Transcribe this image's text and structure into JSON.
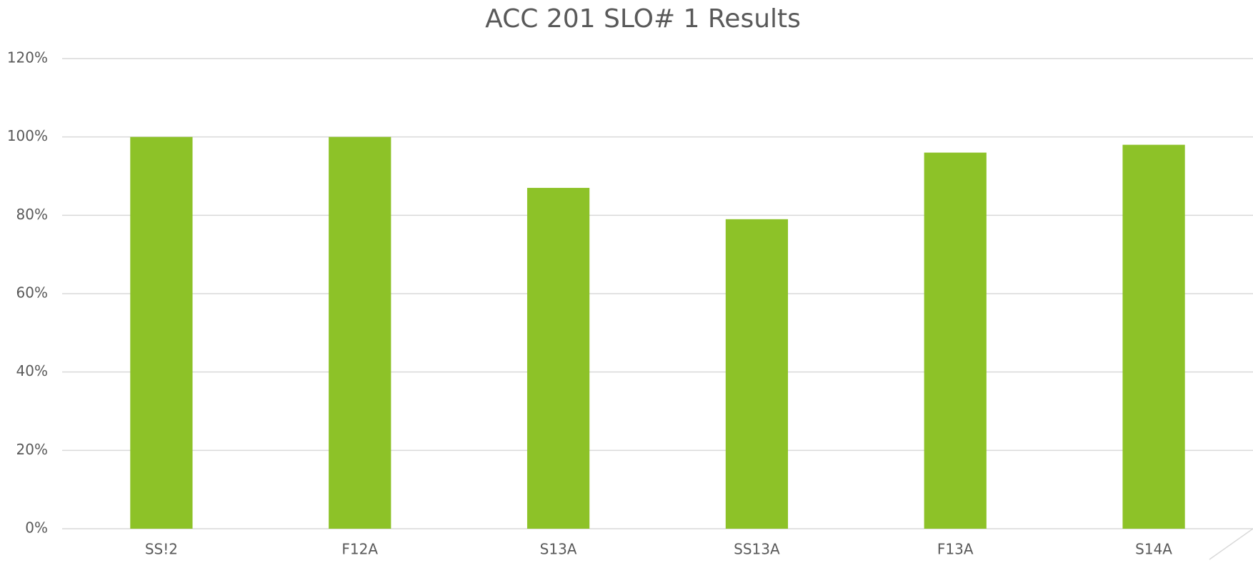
{
  "chart_data": {
    "type": "bar",
    "title": "ACC 201 SLO# 1 Results",
    "categories": [
      "SS!2",
      "F12A",
      "S13A",
      "SS13A",
      "F13A",
      "S14A"
    ],
    "values": [
      100,
      100,
      87,
      79,
      96,
      98
    ],
    "color": "#8dc228",
    "ylim": [
      0,
      120
    ],
    "yticks": [
      {
        "value": 0,
        "label": "0%"
      },
      {
        "value": 20,
        "label": "20%"
      },
      {
        "value": 40,
        "label": "40%"
      },
      {
        "value": 60,
        "label": "60%"
      },
      {
        "value": 80,
        "label": "80%"
      },
      {
        "value": 100,
        "label": "100%"
      },
      {
        "value": 120,
        "label": "120%"
      }
    ],
    "grid": true
  }
}
